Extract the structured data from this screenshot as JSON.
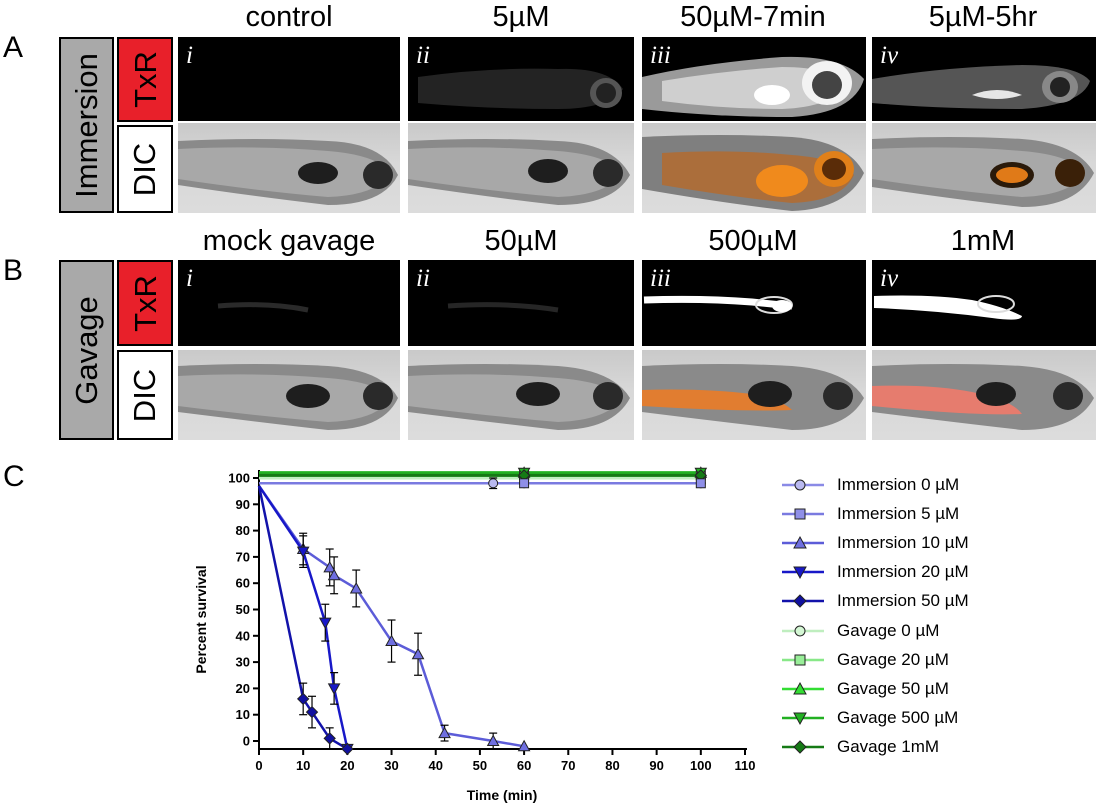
{
  "panels": {
    "A": {
      "letter": "A",
      "group_label": "Immersion",
      "channels": [
        "TxR",
        "DIC"
      ],
      "columns": [
        "control",
        "5µM",
        "50µM-7min",
        "5µM-5hr"
      ],
      "numerals": [
        "i",
        "ii",
        "iii",
        "iv"
      ]
    },
    "B": {
      "letter": "B",
      "group_label": "Gavage",
      "channels": [
        "TxR",
        "DIC"
      ],
      "columns": [
        "mock gavage",
        "50µM",
        "500µM",
        "1mM"
      ],
      "numerals": [
        "i",
        "ii",
        "iii",
        "iv"
      ]
    },
    "C": {
      "letter": "C"
    }
  },
  "colors": {
    "label_grey": "#a9a9a9",
    "label_red": "#e8202a",
    "immersion_light": "#b9b9f0",
    "immersion_mid": "#6f6fe0",
    "immersion_dark": "#1a1ab8",
    "gavage_light": "#b8f0b8",
    "gavage_mid": "#1fce1f",
    "gavage_dark": "#157a15"
  },
  "chart_data": {
    "type": "line",
    "title": "",
    "xlabel": "Time (min)",
    "ylabel": "Percent survival",
    "xlim": [
      0,
      110
    ],
    "ylim": [
      0,
      100
    ],
    "xticks": [
      "0",
      "10",
      "20",
      "30",
      "40",
      "50",
      "60",
      "70",
      "80",
      "90",
      "100",
      "110"
    ],
    "yticks": [
      "0",
      "10",
      "20",
      "30",
      "40",
      "50",
      "60",
      "70",
      "80",
      "90",
      "100"
    ],
    "grid": false,
    "legend_position": "right",
    "series": [
      {
        "name": "Immersion 0 µM",
        "marker": "circle",
        "color": "#b9b9f0",
        "line": "#8a8ae6",
        "points": [
          [
            0,
            98
          ],
          [
            53,
            98
          ],
          [
            60,
            98
          ],
          [
            100,
            98
          ]
        ],
        "errors": [
          0,
          2,
          0,
          0
        ]
      },
      {
        "name": "Immersion 5 µM",
        "marker": "square",
        "color": "#8f8fe8",
        "line": "#7a7ae0",
        "points": [
          [
            0,
            98
          ],
          [
            60,
            98
          ],
          [
            100,
            98
          ]
        ],
        "errors": [
          0,
          0,
          0
        ]
      },
      {
        "name": "Immersion 10 µM",
        "marker": "triangle-up",
        "color": "#6f6fe0",
        "line": "#5c5cd8",
        "points": [
          [
            0,
            97
          ],
          [
            10,
            73
          ],
          [
            16,
            66
          ],
          [
            17,
            63
          ],
          [
            22,
            58
          ],
          [
            30,
            38
          ],
          [
            36,
            33
          ],
          [
            42,
            3
          ],
          [
            53,
            0
          ],
          [
            60,
            -2
          ]
        ],
        "errors": [
          0,
          6,
          7,
          7,
          7,
          8,
          8,
          3,
          3,
          0
        ]
      },
      {
        "name": "Immersion 20 µM",
        "marker": "triangle-down",
        "color": "#1818c8",
        "line": "#1818c8",
        "points": [
          [
            0,
            97
          ],
          [
            10,
            72
          ],
          [
            15,
            45
          ],
          [
            17,
            20
          ],
          [
            20,
            -3
          ]
        ],
        "errors": [
          0,
          6,
          7,
          6,
          0
        ]
      },
      {
        "name": "Immersion 50 µM",
        "marker": "diamond",
        "color": "#1010a0",
        "line": "#1212aa",
        "points": [
          [
            0,
            97
          ],
          [
            10,
            16
          ],
          [
            12,
            11
          ],
          [
            16,
            1
          ],
          [
            20,
            -3
          ]
        ],
        "errors": [
          0,
          6,
          6,
          4,
          0
        ]
      },
      {
        "name": "Gavage 0 µM",
        "marker": "circle",
        "color": "#d4f7d4",
        "line": "#bfeebf",
        "points": [
          [
            0,
            100
          ],
          [
            60,
            100
          ],
          [
            100,
            100
          ]
        ],
        "errors": [
          0,
          0,
          0
        ]
      },
      {
        "name": "Gavage 20 µM",
        "marker": "square",
        "color": "#99ee99",
        "line": "#88e888",
        "points": [
          [
            0,
            101
          ],
          [
            60,
            101
          ],
          [
            100,
            101
          ]
        ],
        "errors": [
          0,
          0,
          0
        ]
      },
      {
        "name": "Gavage 50 µM",
        "marker": "triangle-up",
        "color": "#33dd33",
        "line": "#33dd33",
        "points": [
          [
            0,
            102
          ],
          [
            60,
            102
          ],
          [
            100,
            102
          ]
        ],
        "errors": [
          0,
          0,
          0
        ]
      },
      {
        "name": "Gavage 500 µM",
        "marker": "triangle-down",
        "color": "#22b022",
        "line": "#22b022",
        "points": [
          [
            0,
            102
          ],
          [
            60,
            102
          ],
          [
            100,
            102
          ]
        ],
        "errors": [
          0,
          0,
          0
        ]
      },
      {
        "name": "Gavage 1mM",
        "marker": "diamond",
        "color": "#157a15",
        "line": "#157a15",
        "points": [
          [
            0,
            101
          ],
          [
            60,
            101
          ],
          [
            100,
            101
          ]
        ],
        "errors": [
          0,
          0,
          0
        ]
      }
    ]
  }
}
